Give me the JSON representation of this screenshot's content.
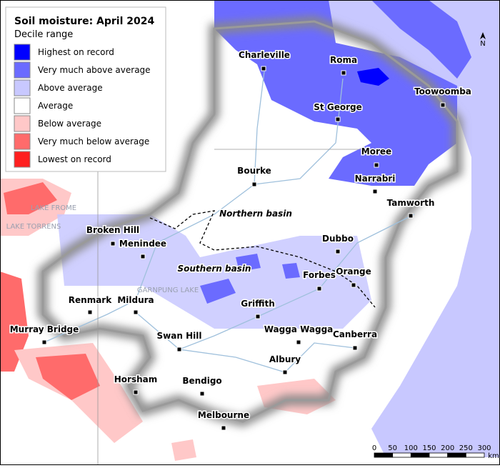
{
  "map": {
    "title": "Soil moisture: April 2024",
    "subtitle": "Decile range",
    "legend": [
      {
        "label": "Highest on record",
        "color": "#0000ff"
      },
      {
        "label": "Very much above average",
        "color": "#6b6bff"
      },
      {
        "label": "Above average",
        "color": "#c8c8ff"
      },
      {
        "label": "Average",
        "color": "#ffffff"
      },
      {
        "label": "Below average",
        "color": "#ffc8c8"
      },
      {
        "label": "Very much below average",
        "color": "#ff6b6b"
      },
      {
        "label": "Lowest on record",
        "color": "#ff2020"
      }
    ],
    "cities": [
      "Charleville",
      "Roma",
      "Toowoomba",
      "St George",
      "Moree",
      "Bourke",
      "Narrabri",
      "Tamworth",
      "Broken Hill",
      "Menindee",
      "Dubbo",
      "Orange",
      "Forbes",
      "Renmark",
      "Mildura",
      "Griffith",
      "Wagga Wagga",
      "Canberra",
      "Murray Bridge",
      "Swan Hill",
      "Albury",
      "Horsham",
      "Bendigo",
      "Melbourne"
    ],
    "basins": [
      "Northern basin",
      "Southern basin"
    ],
    "features": [
      "LAKE FROME",
      "LAKE TORRENS",
      "GARNPUNG LAKE"
    ],
    "scale": {
      "ticks": [
        0,
        50,
        100,
        150,
        200,
        250,
        300
      ],
      "unit": "km"
    },
    "north": "N"
  }
}
